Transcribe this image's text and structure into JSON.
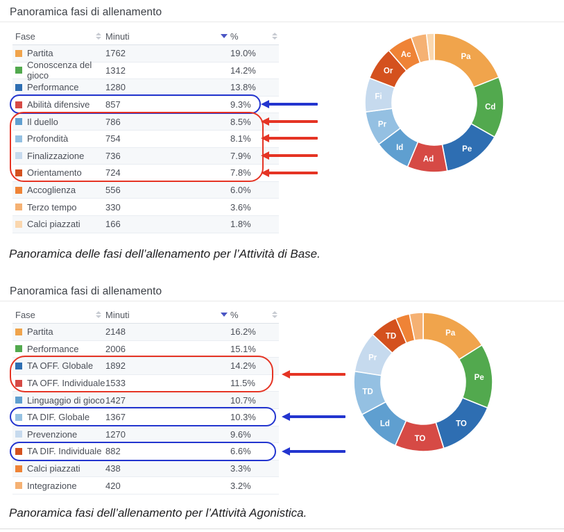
{
  "annotation_colors": {
    "blue": "#2335cf",
    "red": "#e53424"
  },
  "sort_colors": {
    "active": "#4a55c4",
    "inactive": "#c7cbd2"
  },
  "sections": [
    {
      "title": "Panoramica fasi di allenamento",
      "caption": "Panoramica delle fasi dell’allenamento per l’Attività di Base.",
      "columns": {
        "fase": "Fase",
        "minuti": "Minuti",
        "percent": "%"
      },
      "sort": {
        "active_column": "Minuti",
        "direction": "desc"
      },
      "rows": [
        {
          "label": "Partita",
          "minutes": "1762",
          "percent": "19.0%",
          "color": "#f0a44c"
        },
        {
          "label": "Conoscenza del gioco",
          "minutes": "1312",
          "percent": "14.2%",
          "color": "#52a94e"
        },
        {
          "label": "Performance",
          "minutes": "1280",
          "percent": "13.8%",
          "color": "#2e6eb2"
        },
        {
          "label": "Abilità difensive",
          "minutes": "857",
          "percent": "9.3%",
          "color": "#d64a45"
        },
        {
          "label": "Il duello",
          "minutes": "786",
          "percent": "8.5%",
          "color": "#5f9fd0"
        },
        {
          "label": "Profondità",
          "minutes": "754",
          "percent": "8.1%",
          "color": "#94c0e2"
        },
        {
          "label": "Finalizzazione",
          "minutes": "736",
          "percent": "7.9%",
          "color": "#c6daee"
        },
        {
          "label": "Orientamento",
          "minutes": "724",
          "percent": "7.8%",
          "color": "#d4511e"
        },
        {
          "label": "Accoglienza",
          "minutes": "556",
          "percent": "6.0%",
          "color": "#ef8336"
        },
        {
          "label": "Terzo tempo",
          "minutes": "330",
          "percent": "3.6%",
          "color": "#f5b173"
        },
        {
          "label": "Calci piazzati",
          "minutes": "166",
          "percent": "1.8%",
          "color": "#fad7ae"
        }
      ],
      "annotations": {
        "blue_oval_rows": [
          "Abilità difensive"
        ],
        "red_box_rows": [
          "Il duello",
          "Profondità",
          "Finalizzazione",
          "Orientamento"
        ]
      },
      "chart_data": {
        "type": "pie",
        "donut": true,
        "categories": [
          "Partita",
          "Conoscenza del gioco",
          "Performance",
          "Abilità difensive",
          "Il duello",
          "Profondità",
          "Finalizzazione",
          "Orientamento",
          "Accoglienza",
          "Terzo tempo",
          "Calci piazzati"
        ],
        "values": [
          1762,
          1312,
          1280,
          857,
          786,
          754,
          736,
          724,
          556,
          330,
          166
        ],
        "percents": [
          19.0,
          14.2,
          13.8,
          9.3,
          8.5,
          8.1,
          7.9,
          7.8,
          6.0,
          3.6,
          1.8
        ],
        "slice_labels": [
          "Pa",
          "Cd",
          "Pe",
          "Ad",
          "Id",
          "Pr",
          "Fi",
          "Or",
          "Ac",
          "",
          ""
        ],
        "colors": [
          "#f0a44c",
          "#52a94e",
          "#2e6eb2",
          "#d64a45",
          "#5f9fd0",
          "#94c0e2",
          "#c6daee",
          "#d4511e",
          "#ef8336",
          "#f5b173",
          "#fad7ae"
        ],
        "title": "",
        "legend": false
      }
    },
    {
      "title": "Panoramica fasi di allenamento",
      "caption": "Panoramica fasi dell’allenamento per l’Attività Agonistica.",
      "columns": {
        "fase": "Fase",
        "minuti": "Minuti",
        "percent": "%"
      },
      "sort": {
        "active_column": "Minuti",
        "direction": "desc"
      },
      "rows": [
        {
          "label": "Partita",
          "minutes": "2148",
          "percent": "16.2%",
          "color": "#f0a44c"
        },
        {
          "label": "Performance",
          "minutes": "2006",
          "percent": "15.1%",
          "color": "#52a94e"
        },
        {
          "label": "TA OFF. Globale",
          "minutes": "1892",
          "percent": "14.2%",
          "color": "#2e6eb2"
        },
        {
          "label": "TA OFF. Individuale",
          "minutes": "1533",
          "percent": "11.5%",
          "color": "#d64a45"
        },
        {
          "label": "Linguaggio di gioco",
          "minutes": "1427",
          "percent": "10.7%",
          "color": "#5f9fd0"
        },
        {
          "label": "TA DIF. Globale",
          "minutes": "1367",
          "percent": "10.3%",
          "color": "#94c0e2"
        },
        {
          "label": "Prevenzione",
          "minutes": "1270",
          "percent": "9.6%",
          "color": "#c6daee"
        },
        {
          "label": "TA DIF. Individuale",
          "minutes": "882",
          "percent": "6.6%",
          "color": "#d4511e"
        },
        {
          "label": "Calci piazzati",
          "minutes": "438",
          "percent": "3.3%",
          "color": "#ef8336"
        },
        {
          "label": "Integrazione",
          "minutes": "420",
          "percent": "3.2%",
          "color": "#f5b173"
        }
      ],
      "annotations": {
        "red_box_rows": [
          "TA OFF. Globale",
          "TA OFF. Individuale"
        ],
        "blue_oval_rows": [
          "TA DIF. Globale",
          "TA DIF. Individuale"
        ]
      },
      "chart_data": {
        "type": "pie",
        "donut": true,
        "categories": [
          "Partita",
          "Performance",
          "TA OFF. Globale",
          "TA OFF. Individuale",
          "Linguaggio di gioco",
          "TA DIF. Globale",
          "Prevenzione",
          "TA DIF. Individuale",
          "Calci piazzati",
          "Integrazione"
        ],
        "values": [
          2148,
          2006,
          1892,
          1533,
          1427,
          1367,
          1270,
          882,
          438,
          420
        ],
        "percents": [
          16.2,
          15.1,
          14.2,
          11.5,
          10.7,
          10.3,
          9.6,
          6.6,
          3.3,
          3.2
        ],
        "slice_labels": [
          "Pa",
          "Pe",
          "TO",
          "TO",
          "Ld",
          "TD",
          "Pr",
          "TD",
          "",
          ""
        ],
        "colors": [
          "#f0a44c",
          "#52a94e",
          "#2e6eb2",
          "#d64a45",
          "#5f9fd0",
          "#94c0e2",
          "#c6daee",
          "#d4511e",
          "#ef8336",
          "#f5b173"
        ],
        "title": "",
        "legend": false
      }
    }
  ]
}
